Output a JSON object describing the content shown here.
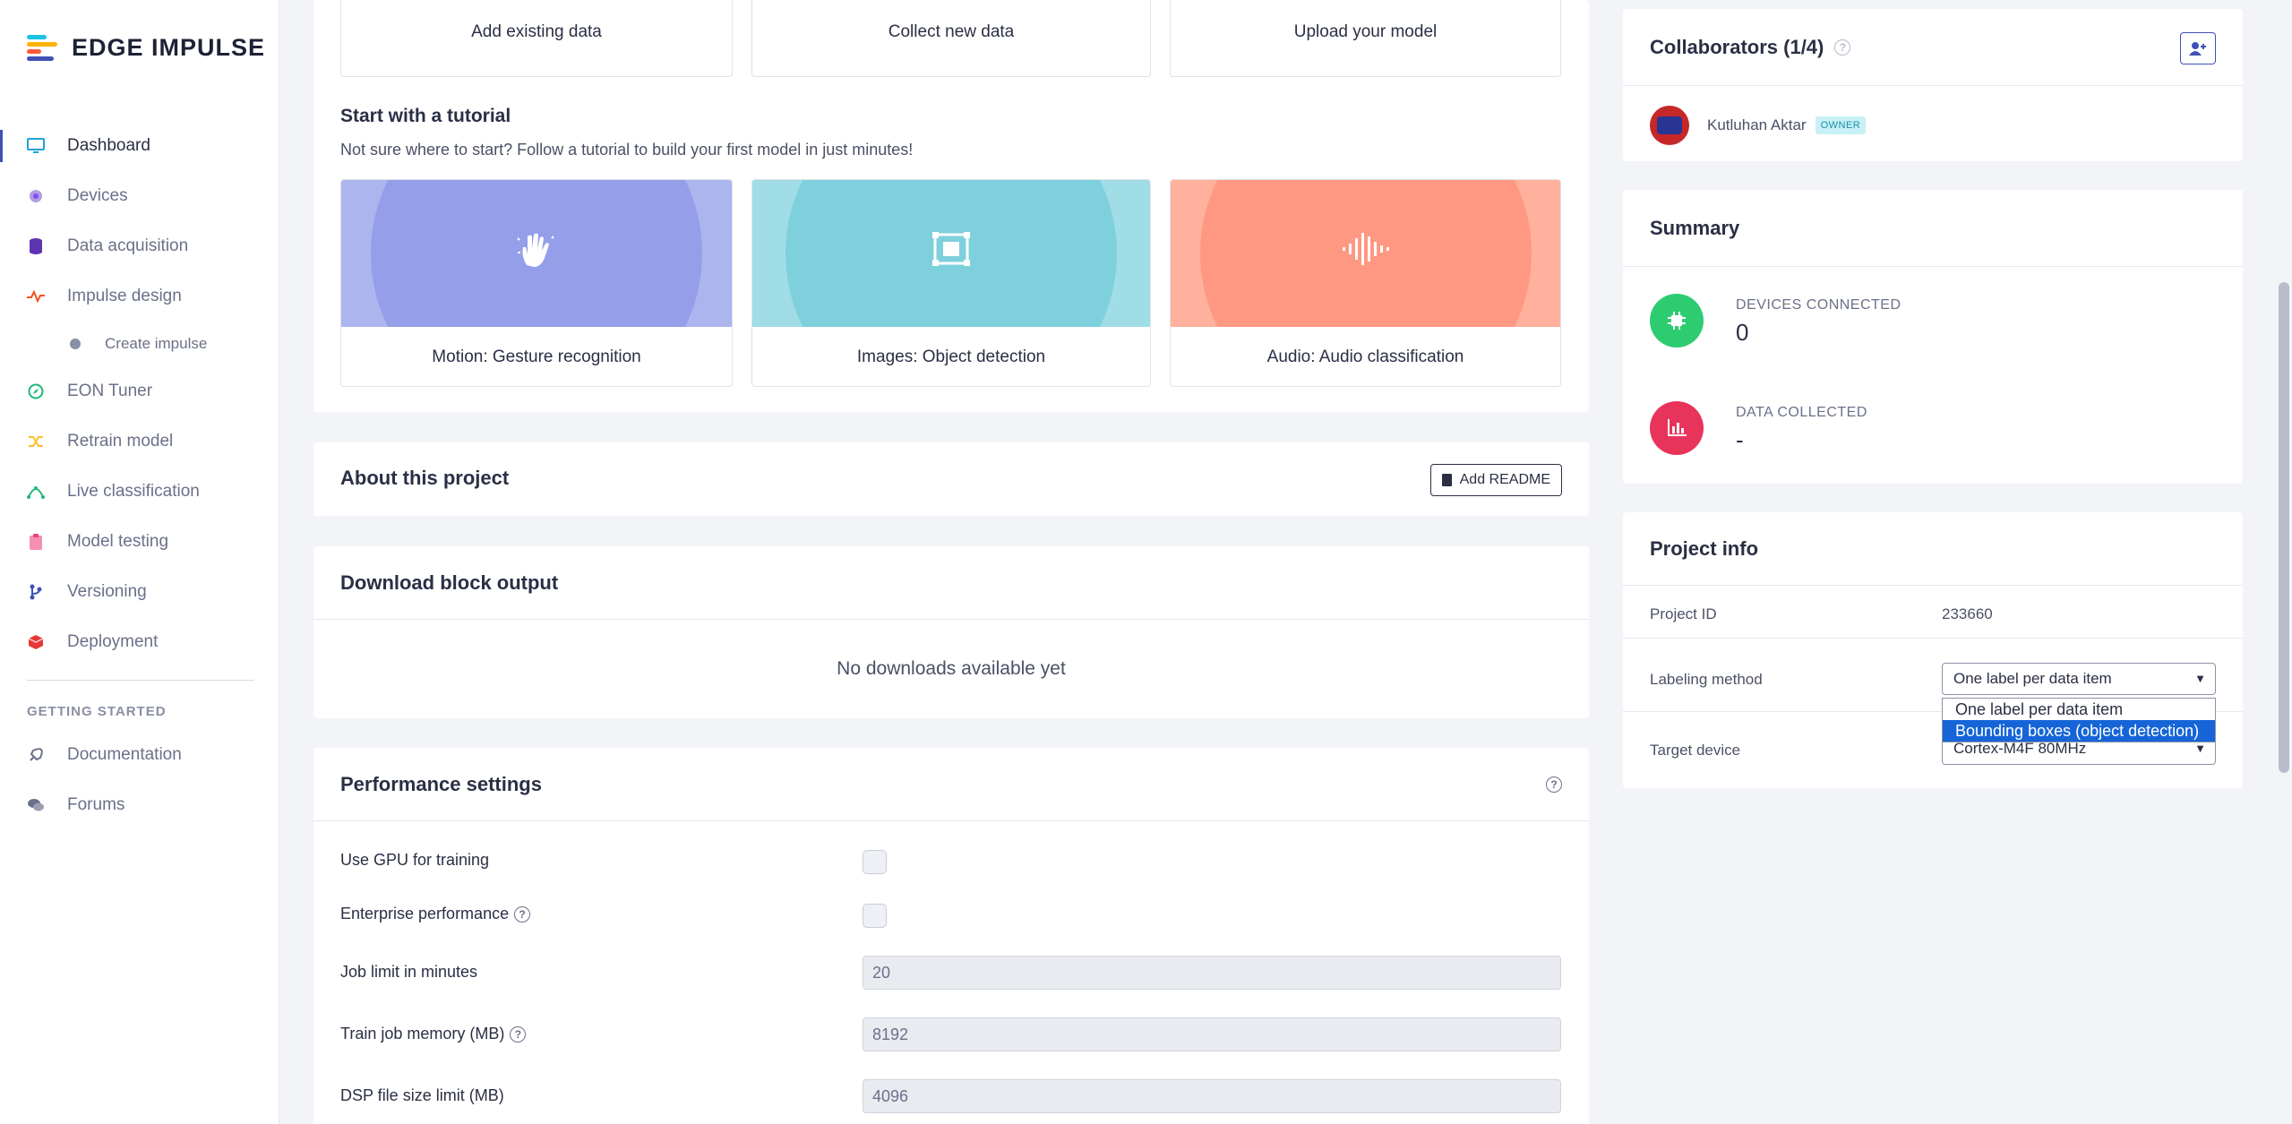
{
  "brand": {
    "name": "EDGE IMPULSE",
    "logo_colors": [
      "#19c4e4",
      "#ffb300",
      "#ff5a3c",
      "#3f51b5"
    ]
  },
  "sidebar": {
    "items": [
      {
        "label": "Dashboard",
        "icon": "monitor-icon",
        "color": "#1fa3d6"
      },
      {
        "label": "Devices",
        "icon": "devices-icon",
        "color": "#7c4dff"
      },
      {
        "label": "Data acquisition",
        "icon": "database-icon",
        "color": "#5e35b1"
      },
      {
        "label": "Impulse design",
        "icon": "pulse-icon",
        "color": "#f4511e"
      },
      {
        "label": "Create impulse",
        "icon": "dot-icon",
        "color": "#8a8fa6"
      },
      {
        "label": "EON Tuner",
        "icon": "compass-icon",
        "color": "#1fb87a"
      },
      {
        "label": "Retrain model",
        "icon": "shuffle-icon",
        "color": "#fbc02d"
      },
      {
        "label": "Live classification",
        "icon": "network-icon",
        "color": "#1fb87a"
      },
      {
        "label": "Model testing",
        "icon": "clipboard-icon",
        "color": "#ec407a"
      },
      {
        "label": "Versioning",
        "icon": "branch-icon",
        "color": "#3f51b5"
      },
      {
        "label": "Deployment",
        "icon": "cube-icon",
        "color": "#e53935"
      }
    ],
    "getting_started_heading": "GETTING STARTED",
    "getting_started": [
      {
        "label": "Documentation",
        "icon": "rocket-icon"
      },
      {
        "label": "Forums",
        "icon": "chat-icon"
      }
    ]
  },
  "actions": [
    "Add existing data",
    "Collect new data",
    "Upload your model"
  ],
  "tutorials": {
    "title": "Start with a tutorial",
    "subtitle": "Not sure where to start? Follow a tutorial to build your first model in just minutes!",
    "items": [
      {
        "label": "Motion: Gesture recognition",
        "color_outer": "#adb5ef",
        "color_inner": "#949ee9"
      },
      {
        "label": "Images: Object detection",
        "color_outer": "#a0dde7",
        "color_inner": "#7fd0dd"
      },
      {
        "label": "Audio: Audio classification",
        "color_outer": "#ffb19d",
        "color_inner": "#ff9882"
      }
    ]
  },
  "about": {
    "title": "About this project",
    "readme_button": "Add README"
  },
  "download": {
    "title": "Download block output",
    "empty": "No downloads available yet"
  },
  "performance": {
    "title": "Performance settings",
    "gpu_label": "Use GPU for training",
    "enterprise_label": "Enterprise performance",
    "job_limit_label": "Job limit in minutes",
    "job_limit_value": "20",
    "train_memory_label": "Train job memory (MB)",
    "train_memory_value": "8192",
    "dsp_limit_label": "DSP file size limit (MB)",
    "dsp_limit_value": "4096"
  },
  "collaborators": {
    "title": "Collaborators (1/4)",
    "members": [
      {
        "name": "Kutluhan Aktar",
        "role": "OWNER"
      }
    ]
  },
  "summary": {
    "title": "Summary",
    "devices_label": "DEVICES CONNECTED",
    "devices_value": "0",
    "data_label": "DATA COLLECTED",
    "data_value": "-"
  },
  "project_info": {
    "title": "Project info",
    "id_label": "Project ID",
    "id_value": "233660",
    "labeling_label": "Labeling method",
    "labeling_value": "One label per data item",
    "labeling_options": [
      "One label per data item",
      "Bounding boxes (object detection)"
    ],
    "target_label": "Target device",
    "target_value": "Cortex-M4F 80MHz"
  }
}
